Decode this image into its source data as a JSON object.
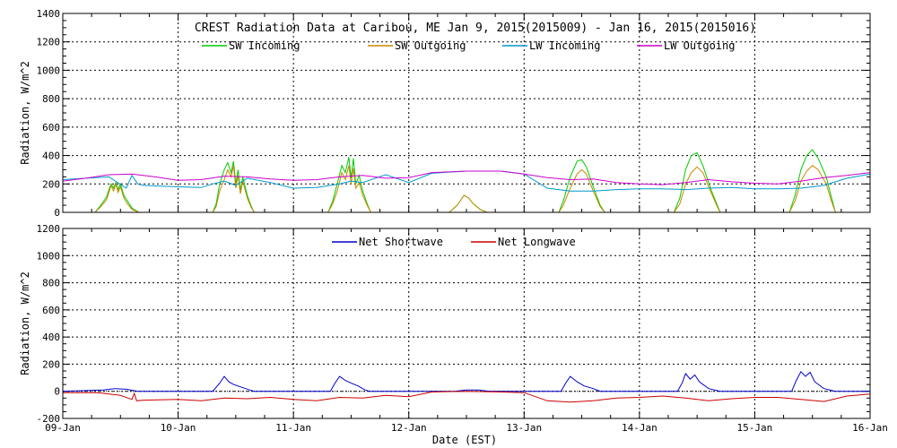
{
  "title": "CREST Radiation Data at Caribou, ME   Jan  9, 2015(2015009) - Jan 16, 2015(2015016)",
  "xlabel": "Date (EST)",
  "chart_data": [
    {
      "type": "line",
      "ylabel": "Radiation, W/m^2",
      "ylim": [
        0,
        1400
      ],
      "yticks": [
        0,
        200,
        400,
        600,
        800,
        1000,
        1200,
        1400
      ],
      "xlim": [
        9,
        16
      ],
      "xticks": [
        "09-Jan",
        "10-Jan",
        "11-Jan",
        "12-Jan",
        "13-Jan",
        "14-Jan",
        "15-Jan",
        "16-Jan"
      ],
      "grid": true,
      "legend": "top",
      "series": [
        {
          "name": "SW Incoming",
          "color": "#00cc00",
          "x": [
            9.0,
            9.2,
            9.28,
            9.33,
            9.38,
            9.4,
            9.42,
            9.44,
            9.46,
            9.48,
            9.5,
            9.53,
            9.56,
            9.6,
            9.66,
            10.0,
            10.3,
            10.33,
            10.36,
            10.4,
            10.43,
            10.46,
            10.48,
            10.5,
            10.52,
            10.54,
            10.56,
            10.6,
            10.63,
            10.66,
            11.0,
            11.3,
            11.34,
            11.38,
            11.42,
            11.45,
            11.48,
            11.5,
            11.52,
            11.54,
            11.57,
            11.6,
            11.64,
            11.67,
            12.0,
            12.35,
            12.42,
            12.48,
            12.52,
            12.56,
            12.62,
            12.68,
            13.0,
            13.3,
            13.34,
            13.4,
            13.46,
            13.5,
            13.54,
            13.6,
            13.66,
            13.7,
            14.0,
            14.3,
            14.35,
            14.4,
            14.45,
            14.5,
            14.55,
            14.62,
            14.68,
            14.7,
            15.0,
            15.3,
            15.35,
            15.4,
            15.45,
            15.5,
            15.55,
            15.62,
            15.66,
            15.7,
            16.0
          ],
          "y": [
            0,
            0,
            0,
            50,
            110,
            160,
            200,
            170,
            210,
            160,
            200,
            120,
            80,
            30,
            0,
            0,
            0,
            60,
            200,
            300,
            350,
            280,
            360,
            200,
            300,
            150,
            250,
            120,
            50,
            0,
            0,
            0,
            80,
            200,
            330,
            280,
            390,
            240,
            380,
            200,
            260,
            150,
            60,
            0,
            0,
            0,
            50,
            120,
            100,
            60,
            20,
            0,
            0,
            0,
            80,
            250,
            360,
            370,
            320,
            180,
            50,
            0,
            0,
            0,
            100,
            300,
            400,
            420,
            330,
            160,
            40,
            0,
            0,
            0,
            120,
            300,
            400,
            440,
            380,
            250,
            120,
            0,
            0
          ]
        },
        {
          "name": "SW Outgoing",
          "color": "#cc8800",
          "x": [
            9.0,
            9.2,
            9.28,
            9.33,
            9.38,
            9.4,
            9.42,
            9.44,
            9.46,
            9.48,
            9.5,
            9.53,
            9.56,
            9.6,
            9.66,
            10.0,
            10.3,
            10.33,
            10.36,
            10.4,
            10.43,
            10.46,
            10.48,
            10.5,
            10.52,
            10.54,
            10.56,
            10.6,
            10.63,
            10.66,
            11.0,
            11.3,
            11.34,
            11.38,
            11.42,
            11.45,
            11.48,
            11.5,
            11.52,
            11.54,
            11.57,
            11.6,
            11.64,
            11.67,
            12.0,
            12.35,
            12.42,
            12.48,
            12.52,
            12.56,
            12.62,
            12.68,
            13.0,
            13.3,
            13.34,
            13.4,
            13.46,
            13.5,
            13.54,
            13.6,
            13.66,
            13.7,
            14.0,
            14.3,
            14.35,
            14.4,
            14.45,
            14.5,
            14.55,
            14.62,
            14.68,
            14.7,
            15.0,
            15.3,
            15.35,
            15.4,
            15.45,
            15.5,
            15.55,
            15.62,
            15.66,
            15.7,
            16.0
          ],
          "y": [
            0,
            0,
            0,
            40,
            90,
            140,
            190,
            150,
            200,
            140,
            180,
            100,
            60,
            20,
            0,
            0,
            0,
            40,
            150,
            230,
            300,
            250,
            330,
            170,
            260,
            130,
            220,
            100,
            40,
            0,
            0,
            0,
            60,
            150,
            280,
            230,
            330,
            200,
            310,
            170,
            210,
            120,
            50,
            0,
            0,
            0,
            50,
            120,
            100,
            60,
            20,
            0,
            0,
            0,
            50,
            170,
            270,
            300,
            270,
            150,
            40,
            0,
            0,
            0,
            60,
            200,
            280,
            320,
            280,
            140,
            30,
            0,
            0,
            0,
            80,
            220,
            290,
            330,
            300,
            200,
            90,
            0,
            0
          ]
        },
        {
          "name": "LW Incoming",
          "color": "#0099cc",
          "x": [
            9.0,
            9.2,
            9.4,
            9.55,
            9.6,
            9.65,
            9.7,
            10.0,
            10.2,
            10.3,
            10.4,
            10.5,
            10.6,
            10.8,
            11.0,
            11.2,
            11.4,
            11.5,
            11.6,
            11.8,
            12.0,
            12.2,
            12.5,
            12.8,
            13.0,
            13.2,
            13.4,
            13.6,
            13.8,
            14.0,
            14.2,
            14.4,
            14.6,
            14.8,
            15.0,
            15.2,
            15.4,
            15.5,
            15.6,
            15.8,
            16.0
          ],
          "y": [
            230,
            240,
            250,
            170,
            260,
            200,
            190,
            180,
            175,
            200,
            220,
            190,
            240,
            210,
            170,
            175,
            200,
            220,
            210,
            265,
            210,
            275,
            290,
            290,
            270,
            170,
            150,
            150,
            160,
            165,
            165,
            160,
            170,
            175,
            165,
            165,
            170,
            180,
            190,
            240,
            270
          ]
        },
        {
          "name": "LW Outgoing",
          "color": "#cc00cc",
          "x": [
            9.0,
            9.2,
            9.4,
            9.6,
            9.8,
            10.0,
            10.2,
            10.4,
            10.6,
            10.8,
            11.0,
            11.2,
            11.4,
            11.6,
            11.8,
            12.0,
            12.2,
            12.5,
            12.8,
            13.0,
            13.2,
            13.4,
            13.6,
            13.8,
            14.0,
            14.2,
            14.4,
            14.6,
            14.8,
            15.0,
            15.2,
            15.4,
            15.6,
            15.8,
            16.0
          ],
          "y": [
            220,
            240,
            265,
            270,
            250,
            225,
            230,
            255,
            250,
            235,
            225,
            230,
            250,
            260,
            240,
            245,
            280,
            290,
            290,
            270,
            245,
            230,
            235,
            210,
            200,
            195,
            210,
            230,
            215,
            205,
            200,
            220,
            245,
            260,
            280
          ]
        }
      ]
    },
    {
      "type": "line",
      "ylabel": "Radiation, W/m^2",
      "ylim": [
        -200,
        1200
      ],
      "yticks": [
        -200,
        0,
        200,
        400,
        600,
        800,
        1000,
        1200
      ],
      "xlim": [
        9,
        16
      ],
      "xticks": [
        "09-Jan",
        "10-Jan",
        "11-Jan",
        "12-Jan",
        "13-Jan",
        "14-Jan",
        "15-Jan",
        "16-Jan"
      ],
      "grid": true,
      "legend": "top",
      "series": [
        {
          "name": "Net Shortwave",
          "color": "#0000cc",
          "x": [
            9.0,
            9.35,
            9.45,
            9.55,
            9.65,
            10.0,
            10.3,
            10.36,
            10.4,
            10.44,
            10.48,
            10.55,
            10.62,
            10.66,
            11.0,
            11.32,
            11.36,
            11.4,
            11.45,
            11.5,
            11.56,
            11.62,
            11.66,
            12.0,
            12.4,
            12.5,
            12.6,
            12.7,
            13.0,
            13.32,
            13.36,
            13.4,
            13.46,
            13.52,
            13.6,
            13.66,
            14.0,
            14.33,
            14.37,
            14.4,
            14.44,
            14.48,
            14.52,
            14.6,
            14.7,
            15.0,
            15.32,
            15.36,
            15.4,
            15.44,
            15.48,
            15.52,
            15.6,
            15.7,
            16.0
          ],
          "y": [
            0,
            10,
            20,
            15,
            0,
            0,
            0,
            60,
            110,
            70,
            50,
            30,
            10,
            0,
            0,
            0,
            60,
            110,
            80,
            60,
            40,
            10,
            0,
            0,
            0,
            10,
            10,
            0,
            0,
            0,
            60,
            110,
            70,
            40,
            20,
            0,
            0,
            0,
            60,
            130,
            90,
            120,
            70,
            20,
            0,
            0,
            0,
            80,
            145,
            110,
            140,
            70,
            20,
            0,
            0
          ]
        },
        {
          "name": "Net Longwave",
          "color": "#cc0000",
          "x": [
            9.0,
            9.3,
            9.5,
            9.6,
            9.62,
            9.64,
            9.7,
            10.0,
            10.2,
            10.4,
            10.6,
            10.8,
            11.0,
            11.2,
            11.4,
            11.6,
            11.8,
            12.0,
            12.2,
            12.5,
            12.8,
            13.0,
            13.2,
            13.4,
            13.6,
            13.8,
            14.0,
            14.2,
            14.4,
            14.6,
            14.8,
            15.0,
            15.2,
            15.4,
            15.6,
            15.8,
            16.0
          ],
          "y": [
            -10,
            -10,
            -30,
            -60,
            -15,
            -70,
            -65,
            -60,
            -70,
            -50,
            -55,
            -45,
            -60,
            -70,
            -45,
            -50,
            -30,
            -40,
            -5,
            0,
            -5,
            -10,
            -70,
            -80,
            -70,
            -50,
            -45,
            -35,
            -50,
            -70,
            -55,
            -45,
            -45,
            -60,
            -75,
            -35,
            -20
          ]
        }
      ]
    }
  ]
}
